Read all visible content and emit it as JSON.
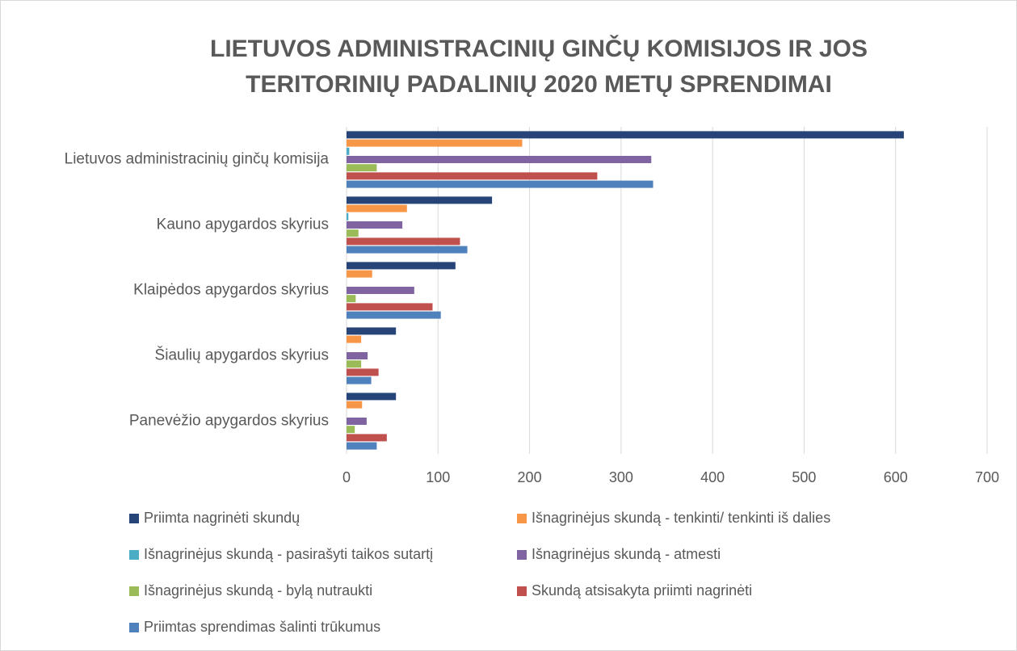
{
  "chart_data": {
    "type": "barh",
    "title": [
      "LIETUVOS ADMINISTRACINIŲ GINČŲ KOMISIJOS IR JOS",
      "TERITORINIŲ PADALINIŲ 2020 METŲ SPRENDIMAI"
    ],
    "categories": [
      "Lietuvos administracinių ginčų komisija",
      "Kauno apygardos skyrius",
      "Klaipėdos apygardos skyrius",
      "Šiaulių apygardos skyrius",
      "Panevėžio apygardos skyrius"
    ],
    "series": [
      {
        "name": "Priimta nagrinėti skundų",
        "color": "#264478",
        "values": [
          609,
          159,
          119,
          54,
          54
        ]
      },
      {
        "name": "Išnagrinėjus skundą -  tenkinti/ tenkinti iš dalies",
        "color": "#f79646",
        "values": [
          192,
          66,
          28,
          16,
          17
        ]
      },
      {
        "name": "Išnagrinėjus skundą - pasirašyti taikos sutartį",
        "color": "#4bacc6",
        "values": [
          3,
          2,
          0,
          0,
          0
        ]
      },
      {
        "name": "Išnagrinėjus skundą -  atmesti",
        "color": "#8064a2",
        "values": [
          333,
          61,
          74,
          23,
          22
        ]
      },
      {
        "name": "Išnagrinėjus skundą - bylą nutraukti",
        "color": "#9bbb59",
        "values": [
          33,
          13,
          10,
          16,
          9
        ]
      },
      {
        "name": "Skundą atsisakyta priimti nagrinėti",
        "color": "#c0504d",
        "values": [
          274,
          124,
          94,
          35,
          44
        ]
      },
      {
        "name": "Priimtas sprendimas šalinti trūkumus",
        "color": "#4f81bd",
        "values": [
          335,
          132,
          103,
          27,
          33
        ]
      }
    ],
    "xlim": [
      0,
      700
    ],
    "xticks": [
      0,
      100,
      200,
      300,
      400,
      500,
      600,
      700
    ],
    "grid": true
  }
}
